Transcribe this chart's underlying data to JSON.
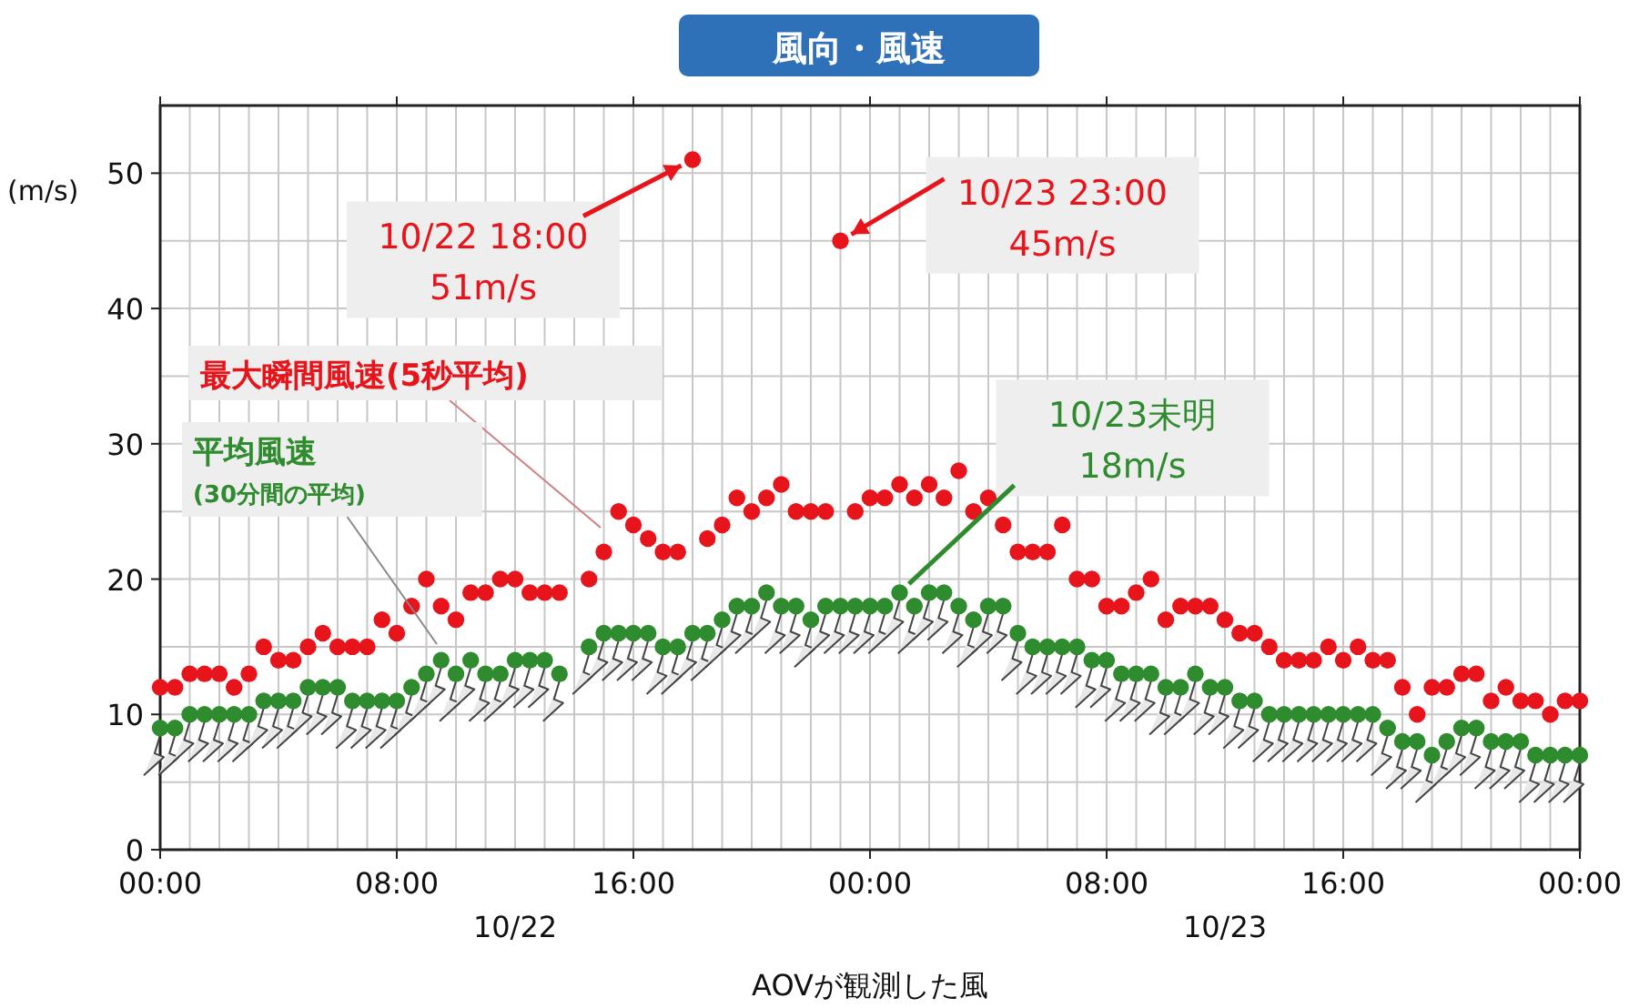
{
  "chart_data": {
    "type": "scatter",
    "title": "風向・風速",
    "xlabel": "AOVが観測した風",
    "ylabel": "(m/s)",
    "x": [
      "--10-22T00:00",
      "--10-22T00:30",
      "--10-22T01:00",
      "--10-22T01:30",
      "--10-22T02:00",
      "--10-22T02:30",
      "--10-22T03:00",
      "--10-22T03:30",
      "--10-22T04:00",
      "--10-22T04:30",
      "--10-22T05:00",
      "--10-22T05:30",
      "--10-22T06:00",
      "--10-22T06:30",
      "--10-22T07:00",
      "--10-22T07:30",
      "--10-22T08:00",
      "--10-22T08:30",
      "--10-22T09:00",
      "--10-22T09:30",
      "--10-22T10:00",
      "--10-22T10:30",
      "--10-22T11:00",
      "--10-22T11:30",
      "--10-22T12:00",
      "--10-22T12:30",
      "--10-22T13:00",
      "--10-22T13:30",
      "--10-22T14:00",
      "--10-22T14:30",
      "--10-22T15:00",
      "--10-22T15:30",
      "--10-22T16:00",
      "--10-22T16:30",
      "--10-22T17:00",
      "--10-22T17:30",
      "--10-22T18:00",
      "--10-22T18:30",
      "--10-22T19:00",
      "--10-22T19:30",
      "--10-22T20:00",
      "--10-22T20:30",
      "--10-22T21:00",
      "--10-22T21:30",
      "--10-22T22:00",
      "--10-22T22:30",
      "--10-22T23:00",
      "--10-22T23:30",
      "--10-23T00:00",
      "--10-23T00:30",
      "--10-23T01:00",
      "--10-23T01:30",
      "--10-23T02:00",
      "--10-23T02:30",
      "--10-23T03:00",
      "--10-23T03:30",
      "--10-23T04:00",
      "--10-23T04:30",
      "--10-23T05:00",
      "--10-23T05:30",
      "--10-23T06:00",
      "--10-23T06:30",
      "--10-23T07:00",
      "--10-23T07:30",
      "--10-23T08:00",
      "--10-23T08:30",
      "--10-23T09:00",
      "--10-23T09:30",
      "--10-23T10:00",
      "--10-23T10:30",
      "--10-23T11:00",
      "--10-23T11:30",
      "--10-23T12:00",
      "--10-23T12:30",
      "--10-23T13:00",
      "--10-23T13:30",
      "--10-23T14:00",
      "--10-23T14:30",
      "--10-23T15:00",
      "--10-23T15:30",
      "--10-23T16:00",
      "--10-23T16:30",
      "--10-23T17:00",
      "--10-23T17:30",
      "--10-23T18:00",
      "--10-23T18:30",
      "--10-23T19:00",
      "--10-23T19:30",
      "--10-23T20:00",
      "--10-23T20:30",
      "--10-23T21:00",
      "--10-23T21:30",
      "--10-23T22:00",
      "--10-23T22:30",
      "--10-23T23:00",
      "--10-23T23:30",
      "--10-24T00:00"
    ],
    "series": [
      {
        "name": "最大瞬間風速(5秒平均)",
        "color": "#e8141b",
        "values": [
          12,
          12,
          13,
          13,
          13,
          12,
          13,
          15,
          14,
          14,
          15,
          16,
          15,
          15,
          15,
          17,
          16,
          18,
          20,
          18,
          17,
          19,
          19,
          20,
          20,
          19,
          19,
          19,
          null,
          20,
          22,
          25,
          24,
          23,
          22,
          22,
          51,
          23,
          24,
          26,
          25,
          26,
          27,
          25,
          25,
          25,
          45,
          25,
          26,
          26,
          27,
          26,
          27,
          26,
          28,
          25,
          26,
          24,
          22,
          22,
          22,
          24,
          20,
          20,
          18,
          18,
          19,
          20,
          17,
          18,
          18,
          18,
          17,
          16,
          16,
          15,
          14,
          14,
          14,
          15,
          14,
          15,
          14,
          14,
          12,
          10,
          12,
          12,
          13,
          13,
          11,
          12,
          11,
          11,
          10,
          11,
          11
        ]
      },
      {
        "name": "平均風速\n(30分間の平均)",
        "color": "#2e8b2e",
        "values": [
          9,
          9,
          10,
          10,
          10,
          10,
          10,
          11,
          11,
          11,
          12,
          12,
          12,
          11,
          11,
          11,
          11,
          12,
          13,
          14,
          13,
          14,
          13,
          13,
          14,
          14,
          14,
          13,
          null,
          15,
          16,
          16,
          16,
          16,
          15,
          15,
          16,
          16,
          17,
          18,
          18,
          19,
          18,
          18,
          17,
          18,
          18,
          18,
          18,
          18,
          19,
          18,
          19,
          19,
          18,
          17,
          18,
          18,
          16,
          15,
          15,
          15,
          15,
          14,
          14,
          13,
          13,
          13,
          12,
          12,
          13,
          12,
          12,
          11,
          11,
          10,
          10,
          10,
          10,
          10,
          10,
          10,
          10,
          9,
          8,
          8,
          7,
          8,
          9,
          9,
          8,
          8,
          8,
          7,
          7,
          7,
          7
        ]
      }
    ],
    "xlim": [
      "--10-22T00:00",
      "--10-24T00:00"
    ],
    "ylim": [
      0,
      55
    ],
    "xticks": [
      {
        "value": "--10-22T00:00",
        "label": "00:00"
      },
      {
        "value": "--10-22T01:00",
        "label": null
      },
      {
        "value": "--10-22T02:00",
        "label": null
      },
      {
        "value": "--10-22T03:00",
        "label": null
      },
      {
        "value": "--10-22T04:00",
        "label": null
      },
      {
        "value": "--10-22T05:00",
        "label": null
      },
      {
        "value": "--10-22T06:00",
        "label": null
      },
      {
        "value": "--10-22T07:00",
        "label": null
      },
      {
        "value": "--10-22T08:00",
        "label": "08:00"
      },
      {
        "value": "--10-22T09:00",
        "label": null
      },
      {
        "value": "--10-22T10:00",
        "label": null
      },
      {
        "value": "--10-22T11:00",
        "label": null
      },
      {
        "value": "--10-22T12:00",
        "label": null
      },
      {
        "value": "--10-22T13:00",
        "label": null
      },
      {
        "value": "--10-22T14:00",
        "label": null
      },
      {
        "value": "--10-22T15:00",
        "label": null
      },
      {
        "value": "--10-22T16:00",
        "label": "16:00"
      },
      {
        "value": "--10-22T17:00",
        "label": null
      },
      {
        "value": "--10-22T18:00",
        "label": null
      },
      {
        "value": "--10-22T19:00",
        "label": null
      },
      {
        "value": "--10-22T20:00",
        "label": null
      },
      {
        "value": "--10-22T21:00",
        "label": null
      },
      {
        "value": "--10-22T22:00",
        "label": null
      },
      {
        "value": "--10-22T23:00",
        "label": null
      },
      {
        "value": "--10-23T00:00",
        "label": "00:00"
      },
      {
        "value": "--10-23T01:00",
        "label": null
      },
      {
        "value": "--10-23T02:00",
        "label": null
      },
      {
        "value": "--10-23T03:00",
        "label": null
      },
      {
        "value": "--10-23T04:00",
        "label": null
      },
      {
        "value": "--10-23T05:00",
        "label": null
      },
      {
        "value": "--10-23T06:00",
        "label": null
      },
      {
        "value": "--10-23T07:00",
        "label": null
      },
      {
        "value": "--10-23T08:00",
        "label": "08:00"
      },
      {
        "value": "--10-23T09:00",
        "label": null
      },
      {
        "value": "--10-23T10:00",
        "label": null
      },
      {
        "value": "--10-23T11:00",
        "label": null
      },
      {
        "value": "--10-23T12:00",
        "label": null
      },
      {
        "value": "--10-23T13:00",
        "label": null
      },
      {
        "value": "--10-23T14:00",
        "label": null
      },
      {
        "value": "--10-23T15:00",
        "label": null
      },
      {
        "value": "--10-23T16:00",
        "label": "16:00"
      },
      {
        "value": "--10-23T17:00",
        "label": null
      },
      {
        "value": "--10-23T18:00",
        "label": null
      },
      {
        "value": "--10-23T19:00",
        "label": null
      },
      {
        "value": "--10-23T20:00",
        "label": null
      },
      {
        "value": "--10-23T21:00",
        "label": null
      },
      {
        "value": "--10-23T22:00",
        "label": null
      },
      {
        "value": "--10-23T23:00",
        "label": null
      },
      {
        "value": "--10-24T00:00",
        "label": "00:00"
      }
    ],
    "yticks": [
      0,
      {
        "value": 5,
        "label": null
      },
      10,
      {
        "value": 15,
        "label": null
      },
      20,
      {
        "value": 25,
        "label": null
      },
      30,
      {
        "value": 35,
        "label": null
      },
      40,
      {
        "value": 45,
        "label": null
      },
      50,
      {
        "value": 55,
        "label": null
      }
    ],
    "grid": true,
    "legend": false,
    "marker": "circle",
    "annotations": [
      {
        "text": "10/22 18:00\n51m/s",
        "x": "--10-22T18:00",
        "y": 51
      },
      {
        "text": "10/23 23:00\n45m/s",
        "x": "--10-22T23:00",
        "y": 45
      },
      {
        "text": "10/23未明\n18m/s",
        "x": "--10-23T01:00",
        "y": 19
      },
      "10/22",
      "10/23"
    ]
  }
}
